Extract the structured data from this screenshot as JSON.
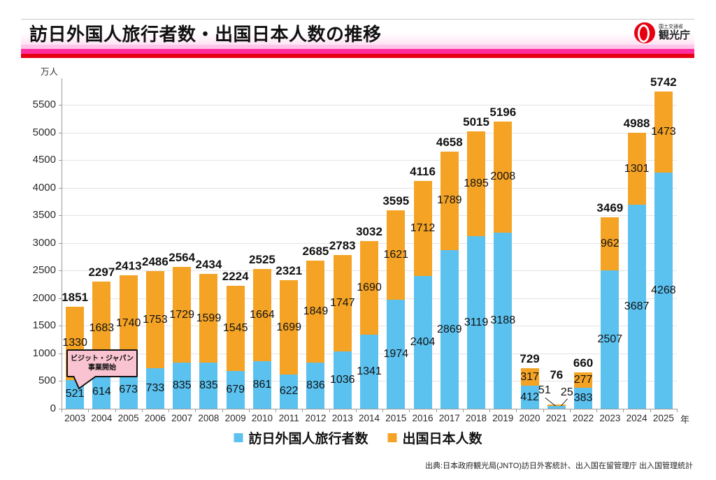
{
  "header": {
    "title": "訪日外国人旅行者数・出国日本人数の推移",
    "logo": {
      "ministry": "国土交通省",
      "agency": "観光庁"
    }
  },
  "chart_data": {
    "type": "bar",
    "stacked": true,
    "title": "訪日外国人旅行者数・出国日本人数の推移",
    "ylabel": "万人",
    "xlabel": "年",
    "ylim": [
      0,
      5900
    ],
    "y_ticks": [
      0,
      500,
      1000,
      1500,
      2000,
      2500,
      3000,
      3500,
      4000,
      4500,
      5000,
      5500
    ],
    "grid": "horizontal",
    "legend_position": "bottom",
    "categories": [
      "2003",
      "2004",
      "2005",
      "2006",
      "2007",
      "2008",
      "2009",
      "2010",
      "2011",
      "2012",
      "2013",
      "2014",
      "2015",
      "2016",
      "2017",
      "2018",
      "2019",
      "2020",
      "2021",
      "2022",
      "2023",
      "2024",
      "2025"
    ],
    "series": [
      {
        "name": "訪日外国人旅行者数",
        "color": "#5BC2F0",
        "values": [
          521,
          614,
          673,
          733,
          835,
          835,
          679,
          861,
          622,
          836,
          1036,
          1341,
          1974,
          2404,
          2869,
          3119,
          3188,
          412,
          51,
          383,
          2507,
          3687,
          4268
        ]
      },
      {
        "name": "出国日本人数",
        "color": "#F5A325",
        "values": [
          1330,
          1683,
          1740,
          1753,
          1729,
          1599,
          1545,
          1664,
          1699,
          1849,
          1747,
          1690,
          1621,
          1712,
          1789,
          1895,
          2008,
          317,
          25,
          277,
          962,
          1301,
          1473
        ]
      }
    ],
    "totals": [
      1851,
      2297,
      2413,
      2486,
      2564,
      2434,
      2224,
      2525,
      2321,
      2685,
      2783,
      3032,
      3595,
      4116,
      4658,
      5015,
      5196,
      729,
      76,
      660,
      3469,
      4988,
      5742
    ],
    "callout_year": "2021",
    "annotation": {
      "line1": "ビジット・ジャパン",
      "line2": "事業開始",
      "target_year": "2003"
    }
  },
  "footer": {
    "source": "出典:日本政府観光局(JNTO)訪日外客統計、出入国在留管理庁 出入国管理統計"
  },
  "colors": {
    "visitors_blue": "#5BC2F0",
    "departures_orange": "#F5A325",
    "stripe_light_pink": "#FFC4E9",
    "stripe_magenta": "#FF2E9E",
    "stripe_red": "#E60014",
    "annotation_pink": "#FAC3D2",
    "logo_red": "#E60012"
  }
}
